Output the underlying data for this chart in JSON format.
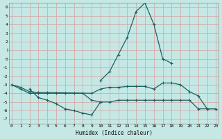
{
  "xlabel": "Humidex (Indice chaleur)",
  "background_color": "#c5e8e5",
  "grid_color": "#d4aaaa",
  "line_color": "#1a6060",
  "x_ticks": [
    0,
    1,
    2,
    3,
    4,
    5,
    6,
    7,
    8,
    9,
    10,
    11,
    12,
    13,
    14,
    15,
    16,
    17,
    18,
    19,
    20,
    21,
    22,
    23
  ],
  "y_ticks": [
    -7,
    -6,
    -5,
    -4,
    -3,
    -2,
    -1,
    0,
    1,
    2,
    3,
    4,
    5,
    6
  ],
  "ylim": [
    -7.5,
    6.5
  ],
  "xlim": [
    -0.3,
    23.3
  ],
  "series": [
    {
      "x": [
        0,
        1,
        2,
        3,
        4,
        5,
        6,
        7,
        8,
        9,
        10,
        11,
        12,
        13,
        14,
        15,
        16,
        17,
        18,
        19,
        20,
        21,
        22,
        23
      ],
      "y": [
        -3.0,
        -3.5,
        -4.0,
        -4.0,
        -4.0,
        -4.0,
        -4.0,
        -4.0,
        -4.0,
        -4.8,
        -5.0,
        -5.0,
        -4.8,
        -4.8,
        -4.8,
        -4.8,
        -4.8,
        -4.8,
        -4.8,
        -4.8,
        -4.8,
        -5.8,
        -5.8,
        -5.8
      ]
    },
    {
      "x": [
        0,
        1,
        2,
        3,
        4,
        9,
        10,
        11,
        12,
        13,
        14,
        15,
        16,
        17,
        18,
        19,
        20,
        21,
        22,
        23
      ],
      "y": [
        -3.0,
        -3.3,
        -3.8,
        -3.9,
        -3.9,
        -4.0,
        -3.5,
        -3.3,
        -3.3,
        -3.2,
        -3.2,
        -3.2,
        -3.5,
        -2.8,
        -2.8,
        -3.0,
        -3.8,
        -4.3,
        -5.8,
        -5.8
      ]
    },
    {
      "x": [
        2,
        3,
        4,
        5,
        6,
        7,
        8,
        9,
        10
      ],
      "y": [
        -3.5,
        -4.5,
        -4.8,
        -5.2,
        -5.8,
        -6.0,
        -6.3,
        -6.5,
        -5.0
      ]
    },
    {
      "x": [
        10,
        11,
        12,
        13,
        14,
        15,
        16,
        17,
        18
      ],
      "y": [
        -2.5,
        -1.5,
        0.5,
        2.5,
        5.5,
        6.5,
        4.0,
        0.0,
        -0.5
      ]
    }
  ]
}
